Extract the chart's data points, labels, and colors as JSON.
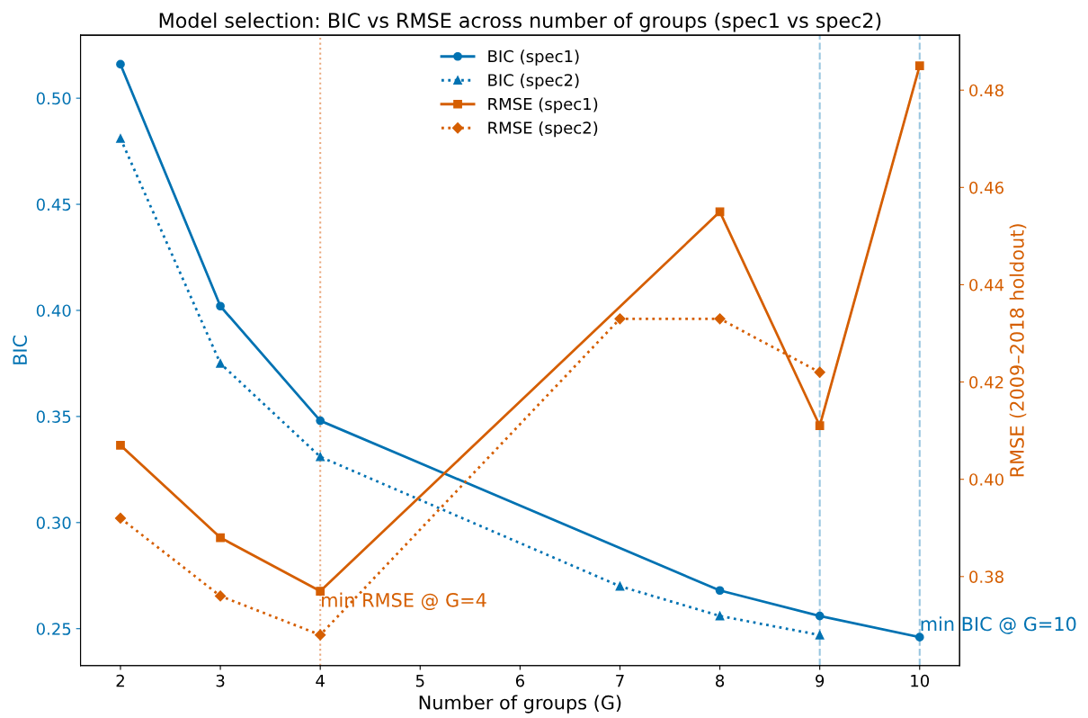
{
  "chart_data": {
    "type": "line",
    "title": "Model selection: BIC vs RMSE across number of groups (spec1 vs spec2)",
    "xlabel": "Number of groups (G)",
    "ylabel": "BIC",
    "y2label": "RMSE (2009–2018 holdout)",
    "xlim": [
      1.6,
      10.4
    ],
    "xticks": [
      2,
      3,
      4,
      5,
      6,
      7,
      8,
      9,
      10
    ],
    "ylim": [
      0.2326,
      0.5297
    ],
    "yticks": [
      0.25,
      {
        "value": 0.3,
        "label": "0.30"
      },
      0.35,
      {
        "value": 0.4,
        "label": "0.40"
      },
      0.45,
      {
        "value": 0.5,
        "label": "0.50"
      }
    ],
    "y2lim": [
      0.3617,
      0.4913
    ],
    "y2ticks": [
      0.38,
      {
        "value": 0.4,
        "label": "0.40"
      },
      0.42,
      0.44,
      0.46,
      0.48
    ],
    "grid": false,
    "legend": "top center",
    "series": [
      {
        "name": "BIC (spec1)",
        "color": "#0072b2",
        "marker": "circle",
        "line_style": "solid",
        "x": [
          2,
          3,
          4,
          8,
          9,
          10
        ],
        "values": [
          0.516,
          0.402,
          0.348,
          0.268,
          0.256,
          0.246
        ]
      },
      {
        "name": "BIC (spec2)",
        "color": "#0072b2",
        "marker": "triangle",
        "line_style": "dotted",
        "x": [
          2,
          3,
          4,
          7,
          8,
          9
        ],
        "values": [
          0.481,
          0.375,
          0.331,
          0.27,
          0.256,
          0.247
        ]
      },
      {
        "name": "RMSE (spec1)",
        "color": "#d55e00",
        "marker": "square",
        "line_style": "solid",
        "axis": "y2",
        "x": [
          2,
          3,
          4,
          8,
          9,
          10
        ],
        "values": [
          0.407,
          0.388,
          0.377,
          0.455,
          0.411,
          0.485
        ]
      },
      {
        "name": "RMSE (spec2)",
        "color": "#d55e00",
        "marker": "diamond",
        "line_style": "dotted",
        "axis": "y2",
        "x": [
          2,
          3,
          4,
          7,
          8,
          9
        ],
        "values": [
          0.392,
          0.376,
          0.368,
          0.433,
          0.433,
          0.422
        ]
      }
    ],
    "ref_lines": [
      {
        "axis": "x",
        "value": 4,
        "color": "#eaaa80",
        "line_style": "dotted"
      },
      {
        "axis": "x",
        "value": 9,
        "color": "#99c6e0",
        "line_style": "dashed"
      },
      {
        "axis": "x",
        "value": 10,
        "color": "#99c6e0",
        "line_style": "dashed"
      }
    ],
    "annotations": [
      {
        "text": "min RMSE @ G=4",
        "x": 4,
        "y": 0.267
      },
      {
        "text": "min BIC @ G=10",
        "x": 10,
        "y": 0.246
      }
    ]
  }
}
